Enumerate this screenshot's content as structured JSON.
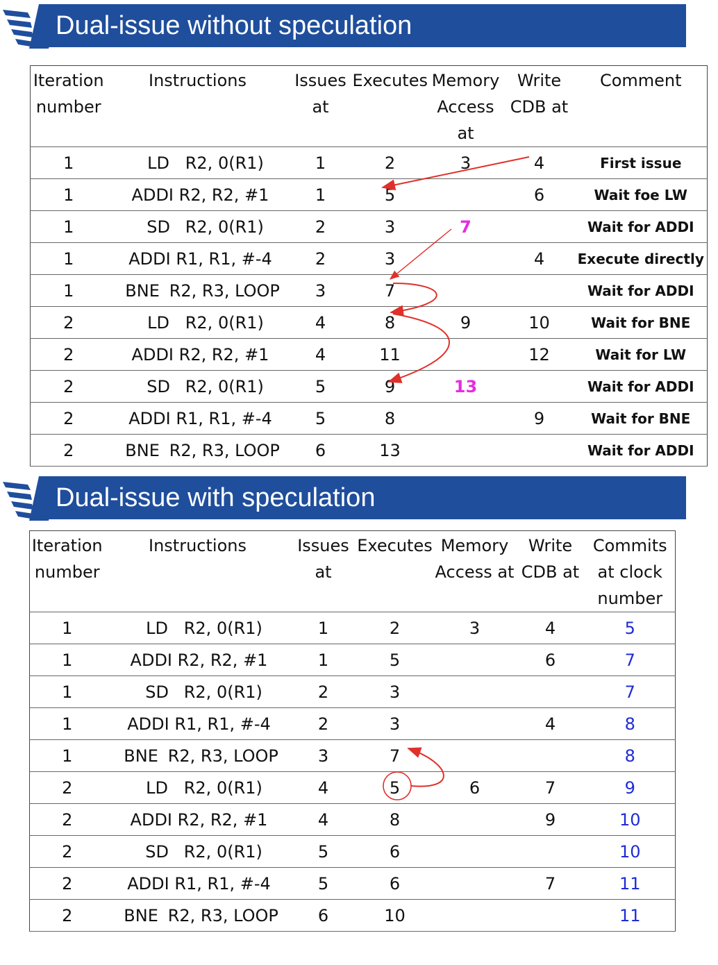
{
  "sections": [
    {
      "title": "Dual-issue without speculation",
      "headers": [
        "Iteration number",
        "Instructions",
        "Issues at",
        "Executes",
        "Memory Access at",
        "Write CDB at",
        "Comment"
      ],
      "rows": [
        {
          "iter": "1",
          "op": "LD",
          "args": "R2, 0(R1)",
          "issue": "1",
          "exec": "2",
          "mem": "3",
          "cdb": "4",
          "last": "First issue"
        },
        {
          "iter": "1",
          "op": "ADDI",
          "args": "R2, R2, #1",
          "issue": "1",
          "exec": "5",
          "mem": "",
          "cdb": "6",
          "last": "Wait foe LW"
        },
        {
          "iter": "1",
          "op": "SD",
          "args": "R2, 0(R1)",
          "issue": "2",
          "exec": "3",
          "mem": "7",
          "cdb": "",
          "last": "Wait for ADDI"
        },
        {
          "iter": "1",
          "op": "ADDI",
          "args": "R1, R1, #-4",
          "issue": "2",
          "exec": "3",
          "mem": "",
          "cdb": "4",
          "last": "Execute directly"
        },
        {
          "iter": "1",
          "op": "BNE",
          "args": "R2, R3, LOOP",
          "issue": "3",
          "exec": "7",
          "mem": "",
          "cdb": "",
          "last": "Wait for ADDI"
        },
        {
          "iter": "2",
          "op": "LD",
          "args": "R2, 0(R1)",
          "issue": "4",
          "exec": "8",
          "mem": "9",
          "cdb": "10",
          "last": "Wait for BNE"
        },
        {
          "iter": "2",
          "op": "ADDI",
          "args": "R2, R2, #1",
          "issue": "4",
          "exec": "11",
          "mem": "",
          "cdb": "12",
          "last": "Wait for LW"
        },
        {
          "iter": "2",
          "op": "SD",
          "args": "R2, 0(R1)",
          "issue": "5",
          "exec": "9",
          "mem": "13",
          "cdb": "",
          "last": "Wait for ADDI"
        },
        {
          "iter": "2",
          "op": "ADDI",
          "args": "R1, R1, #-4",
          "issue": "5",
          "exec": "8",
          "mem": "",
          "cdb": "9",
          "last": "Wait for BNE"
        },
        {
          "iter": "2",
          "op": "BNE",
          "args": "R2, R3, LOOP",
          "issue": "6",
          "exec": "13",
          "mem": "",
          "cdb": "",
          "last": "Wait for ADDI"
        }
      ]
    },
    {
      "title": "Dual-issue with speculation",
      "headers": [
        "Iteration number",
        "Instructions",
        "Issues at",
        "Executes",
        "Memory Access at",
        "Write CDB at",
        "Commits at clock number"
      ],
      "rows": [
        {
          "iter": "1",
          "op": "LD",
          "args": "R2, 0(R1)",
          "issue": "1",
          "exec": "2",
          "mem": "3",
          "cdb": "4",
          "last": "5"
        },
        {
          "iter": "1",
          "op": "ADDI",
          "args": "R2, R2, #1",
          "issue": "1",
          "exec": "5",
          "mem": "",
          "cdb": "6",
          "last": "7"
        },
        {
          "iter": "1",
          "op": "SD",
          "args": "R2, 0(R1)",
          "issue": "2",
          "exec": "3",
          "mem": "",
          "cdb": "",
          "last": "7"
        },
        {
          "iter": "1",
          "op": "ADDI",
          "args": "R1, R1, #-4",
          "issue": "2",
          "exec": "3",
          "mem": "",
          "cdb": "4",
          "last": "8"
        },
        {
          "iter": "1",
          "op": "BNE",
          "args": "R2, R3, LOOP",
          "issue": "3",
          "exec": "7",
          "mem": "",
          "cdb": "",
          "last": "8"
        },
        {
          "iter": "2",
          "op": "LD",
          "args": "R2, 0(R1)",
          "issue": "4",
          "exec": "5",
          "mem": "6",
          "cdb": "7",
          "last": "9"
        },
        {
          "iter": "2",
          "op": "ADDI",
          "args": "R2, R2, #1",
          "issue": "4",
          "exec": "8",
          "mem": "",
          "cdb": "9",
          "last": "10"
        },
        {
          "iter": "2",
          "op": "SD",
          "args": "R2, 0(R1)",
          "issue": "5",
          "exec": "6",
          "mem": "",
          "cdb": "",
          "last": "10"
        },
        {
          "iter": "2",
          "op": "ADDI",
          "args": "R1, R1, #-4",
          "issue": "5",
          "exec": "6",
          "mem": "",
          "cdb": "7",
          "last": "11"
        },
        {
          "iter": "2",
          "op": "BNE",
          "args": "R2, R3, LOOP",
          "issue": "6",
          "exec": "10",
          "mem": "",
          "cdb": "",
          "last": "11"
        }
      ]
    }
  ],
  "colors": {
    "banner": "#1f4e9c",
    "arrow": "#e0302a",
    "highlight": "#e62ce0",
    "commit": "#1f2bd6"
  },
  "icons": [
    "banner-logo-icon",
    "dependency-arrow-icon"
  ]
}
